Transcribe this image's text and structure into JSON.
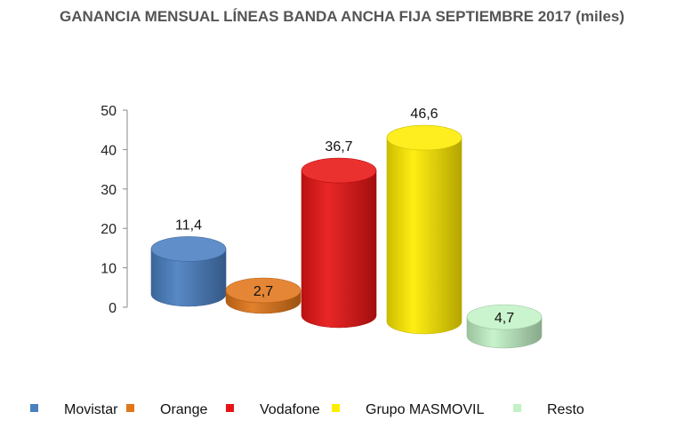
{
  "chart_data": {
    "type": "bar",
    "title": "GANANCIA MENSUAL LÍNEAS BANDA ANCHA FIJA SEPTIEMBRE 2017 (miles)",
    "categories": [
      "Movistar",
      "Orange",
      "Vodafone",
      "Grupo MASMOVIL",
      "Resto"
    ],
    "values": [
      11.4,
      2.7,
      36.7,
      46.6,
      4.7
    ],
    "data_labels": [
      "11,4",
      "2,7",
      "36,7",
      "46,6",
      "4,7"
    ],
    "colors": [
      "#4a7fc1",
      "#e0761a",
      "#e81414",
      "#ffec00",
      "#c2f2c6"
    ],
    "yticks": [
      "0",
      "10",
      "20",
      "30",
      "40",
      "50"
    ],
    "ylim": [
      0,
      50
    ],
    "xlabel": "",
    "ylabel": "",
    "legend_position": "bottom",
    "grid": false,
    "style": "3d-cylinder"
  }
}
